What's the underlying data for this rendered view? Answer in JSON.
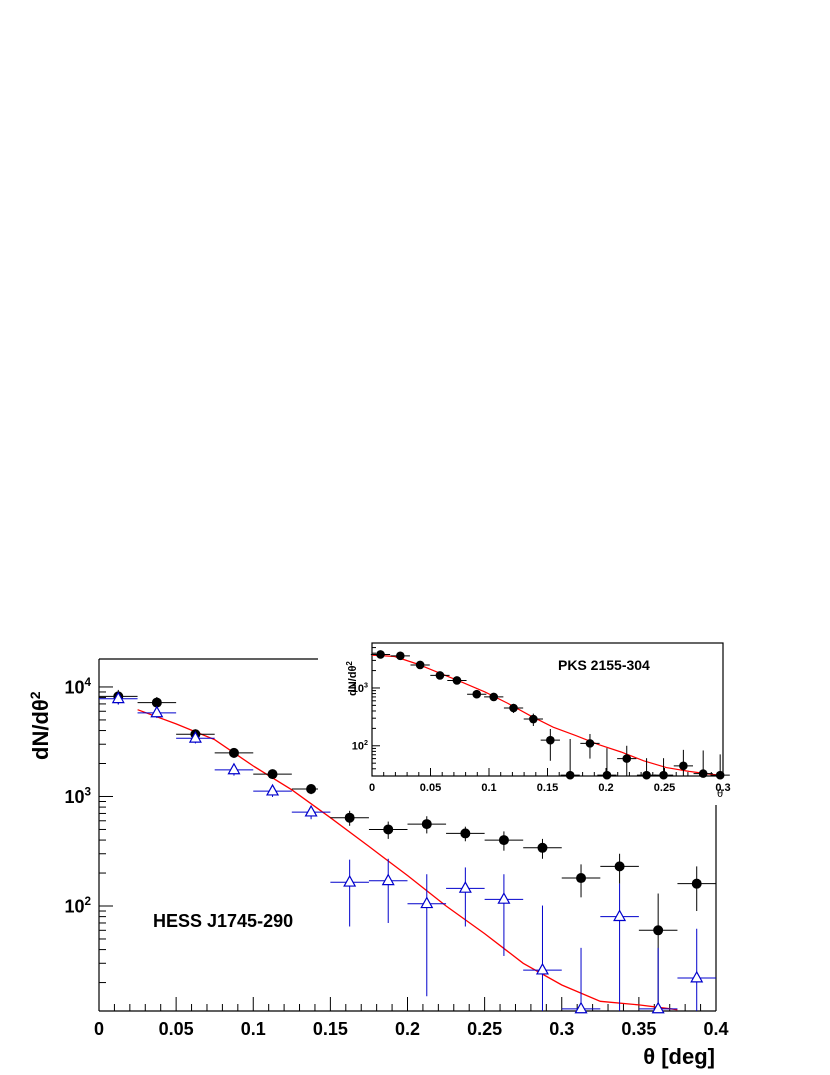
{
  "chart_data": [
    {
      "type": "scatter",
      "ylabel_main": "dN/dθ",
      "ylabel_exp": "2",
      "xlabel": "θ [deg]",
      "source_label": "HESS J1745-290",
      "xlim": [
        0,
        0.4
      ],
      "ylim": [
        11,
        18000
      ],
      "y_scale": "log",
      "x_ticks": [
        "0",
        "0.05",
        "0.1",
        "0.15",
        "0.2",
        "0.25",
        "0.3",
        "0.35",
        "0.4"
      ],
      "y_tick_base": "10",
      "y_tick_exps": [
        "2",
        "3",
        "4"
      ],
      "series": [
        {
          "marker": "filled-circle",
          "color": "#000000",
          "points": [
            {
              "x": 0.0125,
              "y": 8200,
              "err": 1200
            },
            {
              "x": 0.0375,
              "y": 7200,
              "err": 900
            },
            {
              "x": 0.0625,
              "y": 3700,
              "err": 400
            },
            {
              "x": 0.0875,
              "y": 2500,
              "err": 250
            },
            {
              "x": 0.1125,
              "y": 1600,
              "err": 150
            },
            {
              "x": 0.1375,
              "y": 1170,
              "err": 120
            },
            {
              "x": 0.1625,
              "y": 640,
              "err": 100
            },
            {
              "x": 0.1875,
              "y": 500,
              "err": 90
            },
            {
              "x": 0.2125,
              "y": 560,
              "err": 100
            },
            {
              "x": 0.2375,
              "y": 460,
              "err": 70
            },
            {
              "x": 0.2625,
              "y": 400,
              "err": 80
            },
            {
              "x": 0.2875,
              "y": 340,
              "err": 70
            },
            {
              "x": 0.3125,
              "y": 180,
              "err": 60
            },
            {
              "x": 0.3375,
              "y": 230,
              "err": 70
            },
            {
              "x": 0.3625,
              "y": 60,
              "err": 70
            },
            {
              "x": 0.3875,
              "y": 160,
              "err": 70
            }
          ]
        },
        {
          "marker": "open-triangle",
          "color": "#0000cc",
          "points": [
            {
              "x": 0.0125,
              "y": 7800,
              "err": 900
            },
            {
              "x": 0.0375,
              "y": 5800,
              "err": 600
            },
            {
              "x": 0.0625,
              "y": 3400,
              "err": 350
            },
            {
              "x": 0.0875,
              "y": 1750,
              "err": 200
            },
            {
              "x": 0.1125,
              "y": 1120,
              "err": 130
            },
            {
              "x": 0.1375,
              "y": 720,
              "err": 100
            },
            {
              "x": 0.1625,
              "y": 165,
              "err": 100
            },
            {
              "x": 0.1875,
              "y": 170,
              "err": 100
            },
            {
              "x": 0.2125,
              "y": 105,
              "err": 90
            },
            {
              "x": 0.2375,
              "y": 145,
              "err": 80
            },
            {
              "x": 0.2625,
              "y": 115,
              "err": 80
            },
            {
              "x": 0.2875,
              "y": 26,
              "err": 75
            },
            {
              "x": 0.3125,
              "y": 11.5,
              "err": 30
            },
            {
              "x": 0.3375,
              "y": 80,
              "err": 80
            },
            {
              "x": 0.3625,
              "y": 11.5,
              "err": 30
            },
            {
              "x": 0.3875,
              "y": 22,
              "err": 40
            }
          ]
        }
      ],
      "model_curve": {
        "color": "#ff0000",
        "points": [
          [
            0.025,
            6200
          ],
          [
            0.05,
            4600
          ],
          [
            0.075,
            3300
          ],
          [
            0.1,
            1900
          ],
          [
            0.125,
            1150
          ],
          [
            0.15,
            640
          ],
          [
            0.175,
            350
          ],
          [
            0.2,
            190
          ],
          [
            0.225,
            100
          ],
          [
            0.25,
            56
          ],
          [
            0.275,
            30
          ],
          [
            0.3,
            19
          ],
          [
            0.325,
            13.5
          ],
          [
            0.35,
            12.5
          ],
          [
            0.375,
            11.3
          ]
        ]
      }
    },
    {
      "type": "scatter",
      "ylabel_main": "dN/dθ",
      "ylabel_exp": "2",
      "xlabel": "θ",
      "source_label": "PKS 2155-304",
      "xlim": [
        0,
        0.31
      ],
      "ylim": [
        30,
        6000
      ],
      "y_scale": "log",
      "x_ticks": [
        "0",
        "0.05",
        "0.1",
        "0.15",
        "0.2",
        "0.25",
        "0.3"
      ],
      "y_tick_base": "10",
      "y_tick_exps": [
        "2",
        "3"
      ],
      "series": [
        {
          "marker": "filled-circle",
          "color": "#000000",
          "points": [
            {
              "x": 0.0075,
              "y": 3800,
              "err": 300
            },
            {
              "x": 0.025,
              "y": 3600,
              "err": 300
            },
            {
              "x": 0.0425,
              "y": 2500,
              "err": 250
            },
            {
              "x": 0.06,
              "y": 1650,
              "err": 180
            },
            {
              "x": 0.075,
              "y": 1350,
              "err": 150
            },
            {
              "x": 0.0925,
              "y": 780,
              "err": 100
            },
            {
              "x": 0.1075,
              "y": 700,
              "err": 90
            },
            {
              "x": 0.125,
              "y": 450,
              "err": 80
            },
            {
              "x": 0.1425,
              "y": 290,
              "err": 70
            },
            {
              "x": 0.1575,
              "y": 125,
              "err": 70
            },
            {
              "x": 0.175,
              "y": 31,
              "err": 100
            },
            {
              "x": 0.1925,
              "y": 110,
              "err": 50
            },
            {
              "x": 0.2075,
              "y": 31,
              "err": 60
            },
            {
              "x": 0.225,
              "y": 60,
              "err": 40
            },
            {
              "x": 0.2425,
              "y": 31,
              "err": 30
            },
            {
              "x": 0.2575,
              "y": 31,
              "err": 30
            },
            {
              "x": 0.275,
              "y": 45,
              "err": 40
            },
            {
              "x": 0.2925,
              "y": 33,
              "err": 50
            },
            {
              "x": 0.3075,
              "y": 31,
              "err": 40
            }
          ]
        }
      ],
      "model_curve": {
        "color": "#ff0000",
        "points": [
          [
            0.0,
            3700
          ],
          [
            0.02,
            3500
          ],
          [
            0.04,
            2600
          ],
          [
            0.06,
            1800
          ],
          [
            0.08,
            1250
          ],
          [
            0.1,
            850
          ],
          [
            0.12,
            540
          ],
          [
            0.14,
            330
          ],
          [
            0.16,
            210
          ],
          [
            0.18,
            150
          ],
          [
            0.2,
            105
          ],
          [
            0.22,
            78
          ],
          [
            0.24,
            55
          ],
          [
            0.26,
            42
          ],
          [
            0.28,
            36
          ],
          [
            0.3,
            32
          ],
          [
            0.31,
            31
          ]
        ]
      }
    }
  ]
}
